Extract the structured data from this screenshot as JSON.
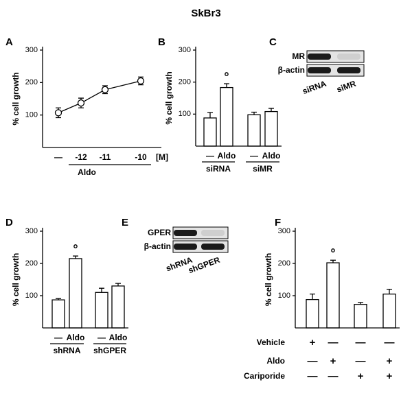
{
  "title": "SkBr3",
  "chart_data": [
    {
      "label": "A",
      "type": "line",
      "ylabel": "% cell growth",
      "categories": [
        "—",
        "-12",
        "-11",
        "-10"
      ],
      "x_unit": "[M]",
      "group_label": "Aldo",
      "values": [
        107,
        137,
        178,
        205
      ],
      "errors": [
        15,
        15,
        12,
        12
      ],
      "ylim": [
        0,
        300
      ],
      "yticks": [
        100,
        200,
        300
      ]
    },
    {
      "label": "B",
      "type": "bar",
      "ylabel": "% cell growth",
      "categories": [
        "—",
        "Aldo",
        "—",
        "Aldo"
      ],
      "groups": [
        {
          "label": "siRNA"
        },
        {
          "label": "siMR"
        }
      ],
      "values": [
        88,
        183,
        98,
        108
      ],
      "errors": [
        17,
        12,
        8,
        10
      ],
      "value_marks": [
        null,
        "°",
        null,
        null
      ],
      "ylim": [
        0,
        300
      ],
      "yticks": [
        100,
        200,
        300
      ]
    },
    {
      "label": "D",
      "type": "bar",
      "ylabel": "% cell growth",
      "categories": [
        "—",
        "Aldo",
        "—",
        "Aldo"
      ],
      "groups": [
        {
          "label": "shRNA"
        },
        {
          "label": "shGPER"
        }
      ],
      "values": [
        87,
        215,
        110,
        130
      ],
      "errors": [
        4,
        8,
        13,
        8
      ],
      "value_marks": [
        null,
        "°",
        null,
        null
      ],
      "ylim": [
        0,
        300
      ],
      "yticks": [
        100,
        200,
        300
      ]
    },
    {
      "label": "F",
      "type": "bar",
      "ylabel": "% cell growth",
      "values": [
        88,
        202,
        73,
        105
      ],
      "errors": [
        17,
        8,
        6,
        15
      ],
      "value_marks": [
        null,
        "°",
        null,
        null
      ],
      "conditions": [
        {
          "name": "Vehicle",
          "signs": [
            "+",
            "—",
            "—",
            "—"
          ]
        },
        {
          "name": "Aldo",
          "signs": [
            "—",
            "+",
            "—",
            "+"
          ]
        },
        {
          "name": "Cariporide",
          "signs": [
            "—",
            "—",
            "+",
            "+"
          ]
        }
      ],
      "ylim": [
        0,
        300
      ],
      "yticks": [
        100,
        200,
        300
      ]
    }
  ],
  "blots": [
    {
      "label": "C",
      "rows": [
        "MR",
        "β-actin"
      ],
      "lanes": [
        "siRNA",
        "siMR"
      ]
    },
    {
      "label": "E",
      "rows": [
        "GPER",
        "β-actin"
      ],
      "lanes": [
        "shRNA",
        "shGPER"
      ]
    }
  ]
}
